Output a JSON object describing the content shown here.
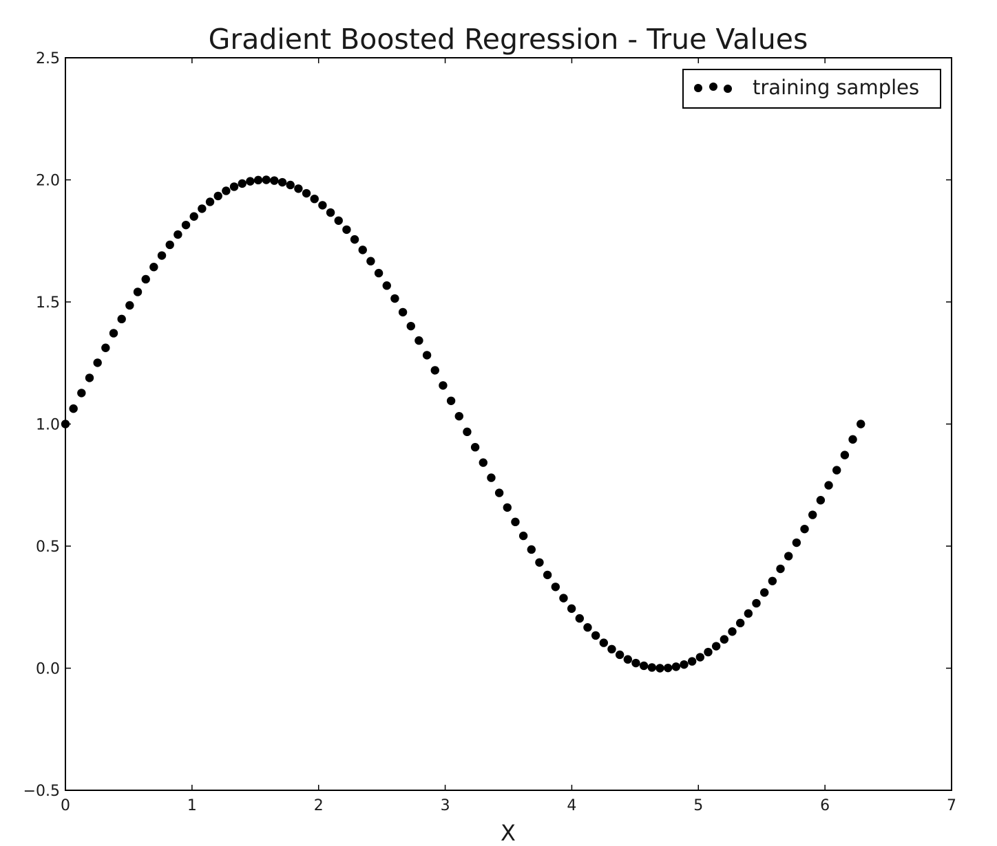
{
  "chart_data": {
    "type": "scatter",
    "title": "Gradient Boosted Regression - True Values",
    "xlabel": "X",
    "ylabel": "",
    "xlim": [
      0,
      7
    ],
    "ylim": [
      -0.5,
      2.5
    ],
    "xticks": [
      0,
      1,
      2,
      3,
      4,
      5,
      6,
      7
    ],
    "xtick_labels": [
      "0",
      "1",
      "2",
      "3",
      "4",
      "5",
      "6",
      "7"
    ],
    "yticks": [
      -0.5,
      0.0,
      0.5,
      1.0,
      1.5,
      2.0,
      2.5
    ],
    "ytick_labels": [
      "−0.5",
      "0.0",
      "0.5",
      "1.0",
      "1.5",
      "2.0",
      "2.5"
    ],
    "grid": false,
    "legend": {
      "position": "upper-right",
      "entries": [
        "training samples"
      ]
    },
    "series": [
      {
        "name": "training samples",
        "color": "#000000",
        "marker": "circle",
        "x": [
          0,
          0.0635,
          0.1269,
          0.1904,
          0.2539,
          0.3173,
          0.3808,
          0.4443,
          0.5077,
          0.5712,
          0.6347,
          0.6981,
          0.7616,
          0.8251,
          0.8885,
          0.952,
          1.0155,
          1.0789,
          1.1424,
          1.2059,
          1.2693,
          1.3328,
          1.3963,
          1.4597,
          1.5232,
          1.5867,
          1.6501,
          1.7136,
          1.7771,
          1.8405,
          1.904,
          1.9675,
          2.0309,
          2.0944,
          2.1579,
          2.2213,
          2.2848,
          2.3483,
          2.4117,
          2.4752,
          2.5387,
          2.6021,
          2.6656,
          2.7291,
          2.7925,
          2.856,
          2.9195,
          2.9829,
          3.0464,
          3.1099,
          3.1733,
          3.2368,
          3.3003,
          3.3637,
          3.4272,
          3.4907,
          3.5541,
          3.6176,
          3.6811,
          3.7445,
          3.808,
          3.8715,
          3.9349,
          3.9984,
          4.0619,
          4.1253,
          4.1888,
          4.2523,
          4.3157,
          4.3792,
          4.4427,
          4.5061,
          4.5696,
          4.6331,
          4.6965,
          4.76,
          4.8235,
          4.8869,
          4.9504,
          5.0139,
          5.0773,
          5.1408,
          5.2043,
          5.2677,
          5.3312,
          5.3947,
          5.4581,
          5.5216,
          5.5851,
          5.6485,
          5.712,
          5.7755,
          5.8389,
          5.9024,
          5.9659,
          6.0293,
          6.0928,
          6.1563,
          6.2197,
          6.2832
        ],
        "y": [
          1.0,
          1.063,
          1.127,
          1.189,
          1.251,
          1.312,
          1.372,
          1.43,
          1.486,
          1.541,
          1.593,
          1.643,
          1.69,
          1.734,
          1.776,
          1.815,
          1.85,
          1.882,
          1.91,
          1.934,
          1.955,
          1.972,
          1.985,
          1.994,
          1.999,
          2.0,
          1.997,
          1.99,
          1.979,
          1.964,
          1.945,
          1.922,
          1.896,
          1.866,
          1.833,
          1.796,
          1.756,
          1.713,
          1.667,
          1.618,
          1.567,
          1.514,
          1.458,
          1.401,
          1.342,
          1.282,
          1.22,
          1.158,
          1.095,
          1.032,
          0.968,
          0.905,
          0.842,
          0.78,
          0.718,
          0.658,
          0.599,
          0.542,
          0.486,
          0.433,
          0.382,
          0.333,
          0.287,
          0.244,
          0.204,
          0.167,
          0.134,
          0.104,
          0.078,
          0.055,
          0.036,
          0.021,
          0.01,
          0.003,
          0.0,
          0.001,
          0.006,
          0.015,
          0.028,
          0.045,
          0.066,
          0.09,
          0.118,
          0.15,
          0.185,
          0.224,
          0.266,
          0.31,
          0.357,
          0.407,
          0.459,
          0.514,
          0.57,
          0.628,
          0.688,
          0.749,
          0.811,
          0.873,
          0.937,
          1.0
        ]
      }
    ]
  }
}
